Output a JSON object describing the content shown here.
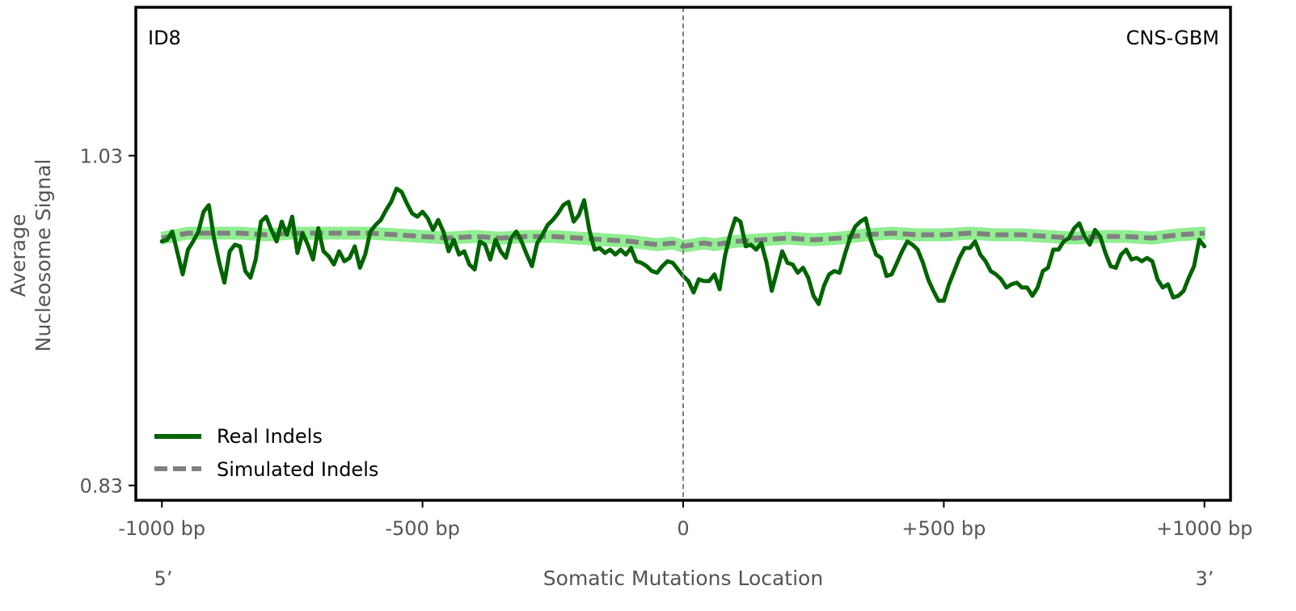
{
  "chart_data": {
    "type": "line",
    "ylabel_line1": "Average",
    "ylabel_line2": "Nucleosome Signal",
    "xlabel": "Somatic Mutations Location",
    "left_annotation": "ID8",
    "right_annotation": "CNS-GBM",
    "end_label_5": "5’",
    "end_label_3": "3’",
    "xlim": [
      -1050,
      1050
    ],
    "ylim": [
      0.821,
      1.12
    ],
    "x_ticks": [
      -1000,
      -500,
      0,
      500,
      1000
    ],
    "x_tick_labels": [
      "-1000 bp",
      "-500 bp",
      "0",
      "+500 bp",
      "+1000 bp"
    ],
    "y_ticks": [
      0.83,
      1.03
    ],
    "y_tick_labels": [
      "0.83",
      "1.03"
    ],
    "vline_x": 0,
    "colors": {
      "real": "#006400",
      "simulated": "#808080",
      "band": "#90ee90",
      "vline": "#808080",
      "frame": "#000000"
    },
    "legend": {
      "position": "lower-left",
      "entries": [
        "Real Indels",
        "Simulated Indels"
      ]
    },
    "series": [
      {
        "name": "Real Indels",
        "style": "solid",
        "x": [
          -1000,
          -990,
          -980,
          -970,
          -960,
          -950,
          -940,
          -930,
          -920,
          -910,
          -900,
          -890,
          -880,
          -870,
          -860,
          -850,
          -840,
          -830,
          -820,
          -810,
          -800,
          -790,
          -780,
          -770,
          -760,
          -750,
          -740,
          -730,
          -720,
          -710,
          -700,
          -690,
          -680,
          -670,
          -660,
          -650,
          -640,
          -630,
          -620,
          -610,
          -600,
          -590,
          -580,
          -570,
          -560,
          -550,
          -540,
          -530,
          -520,
          -510,
          -500,
          -490,
          -480,
          -470,
          -460,
          -450,
          -440,
          -430,
          -420,
          -410,
          -400,
          -390,
          -380,
          -370,
          -360,
          -350,
          -340,
          -330,
          -320,
          -310,
          -300,
          -290,
          -280,
          -270,
          -260,
          -250,
          -240,
          -230,
          -220,
          -210,
          -200,
          -190,
          -180,
          -170,
          -160,
          -150,
          -140,
          -130,
          -120,
          -110,
          -100,
          -90,
          -80,
          -70,
          -60,
          -50,
          -40,
          -30,
          -20,
          -10,
          0,
          10,
          20,
          30,
          40,
          50,
          60,
          70,
          80,
          90,
          100,
          110,
          120,
          130,
          140,
          150,
          160,
          170,
          180,
          190,
          200,
          210,
          220,
          230,
          240,
          250,
          260,
          270,
          280,
          290,
          300,
          310,
          320,
          330,
          340,
          350,
          360,
          370,
          380,
          390,
          400,
          410,
          420,
          430,
          440,
          450,
          460,
          470,
          480,
          490,
          500,
          510,
          520,
          530,
          540,
          550,
          560,
          570,
          580,
          590,
          600,
          610,
          620,
          630,
          640,
          650,
          660,
          670,
          680,
          690,
          700,
          710,
          720,
          730,
          740,
          750,
          760,
          770,
          780,
          790,
          800,
          810,
          820,
          830,
          840,
          850,
          860,
          870,
          880,
          890,
          900,
          910,
          920,
          930,
          940,
          950,
          960,
          970,
          980,
          990,
          1000
        ],
        "values": [
          0.978,
          0.979,
          0.984,
          0.971,
          0.958,
          0.973,
          0.978,
          0.984,
          0.996,
          1.0,
          0.98,
          0.965,
          0.953,
          0.972,
          0.976,
          0.975,
          0.96,
          0.956,
          0.967,
          0.99,
          0.993,
          0.985,
          0.978,
          0.99,
          0.982,
          0.993,
          0.971,
          0.983,
          0.976,
          0.967,
          0.986,
          0.972,
          0.969,
          0.964,
          0.972,
          0.966,
          0.968,
          0.975,
          0.962,
          0.97,
          0.984,
          0.988,
          0.991,
          0.997,
          1.002,
          1.01,
          1.008,
          1.001,
          0.995,
          0.993,
          0.996,
          0.992,
          0.985,
          0.991,
          0.984,
          0.972,
          0.979,
          0.97,
          0.972,
          0.964,
          0.961,
          0.978,
          0.976,
          0.967,
          0.979,
          0.972,
          0.968,
          0.98,
          0.984,
          0.978,
          0.97,
          0.963,
          0.977,
          0.982,
          0.988,
          0.991,
          0.995,
          1.0,
          1.002,
          0.99,
          0.994,
          1.003,
          0.985,
          0.973,
          0.974,
          0.971,
          0.973,
          0.97,
          0.973,
          0.97,
          0.974,
          0.966,
          0.965,
          0.963,
          0.96,
          0.959,
          0.963,
          0.966,
          0.965,
          0.961,
          0.957,
          0.954,
          0.947,
          0.955,
          0.954,
          0.954,
          0.958,
          0.949,
          0.969,
          0.982,
          0.992,
          0.99,
          0.975,
          0.976,
          0.973,
          0.977,
          0.965,
          0.948,
          0.96,
          0.972,
          0.965,
          0.964,
          0.959,
          0.962,
          0.956,
          0.945,
          0.94,
          0.951,
          0.958,
          0.96,
          0.959,
          0.97,
          0.98,
          0.987,
          0.99,
          0.992,
          0.979,
          0.97,
          0.968,
          0.957,
          0.958,
          0.965,
          0.972,
          0.978,
          0.976,
          0.973,
          0.965,
          0.955,
          0.948,
          0.942,
          0.942,
          0.952,
          0.96,
          0.968,
          0.974,
          0.974,
          0.978,
          0.97,
          0.966,
          0.96,
          0.958,
          0.955,
          0.95,
          0.952,
          0.953,
          0.95,
          0.95,
          0.945,
          0.95,
          0.96,
          0.962,
          0.973,
          0.973,
          0.978,
          0.98,
          0.986,
          0.989,
          0.981,
          0.976,
          0.985,
          0.981,
          0.971,
          0.963,
          0.962,
          0.97,
          0.973,
          0.967,
          0.968,
          0.966,
          0.968,
          0.966,
          0.955,
          0.95,
          0.952,
          0.944,
          0.945,
          0.948,
          0.956,
          0.963,
          0.979,
          0.975
        ]
      },
      {
        "name": "Simulated Indels",
        "style": "dashed",
        "x": [
          -1000,
          -950,
          -900,
          -850,
          -800,
          -750,
          -700,
          -650,
          -600,
          -550,
          -500,
          -450,
          -400,
          -350,
          -300,
          -250,
          -200,
          -150,
          -100,
          -50,
          -20,
          0,
          20,
          40,
          60,
          100,
          150,
          200,
          250,
          300,
          350,
          400,
          450,
          500,
          550,
          600,
          650,
          700,
          750,
          800,
          850,
          900,
          950,
          1000
        ],
        "values": [
          0.98,
          0.983,
          0.983,
          0.983,
          0.982,
          0.983,
          0.983,
          0.983,
          0.983,
          0.982,
          0.981,
          0.98,
          0.981,
          0.98,
          0.981,
          0.981,
          0.98,
          0.979,
          0.978,
          0.976,
          0.977,
          0.975,
          0.976,
          0.977,
          0.976,
          0.978,
          0.979,
          0.98,
          0.979,
          0.98,
          0.982,
          0.983,
          0.982,
          0.982,
          0.983,
          0.982,
          0.982,
          0.981,
          0.98,
          0.981,
          0.981,
          0.98,
          0.982,
          0.983
        ],
        "band_halfwidth": 0.0032
      }
    ]
  }
}
